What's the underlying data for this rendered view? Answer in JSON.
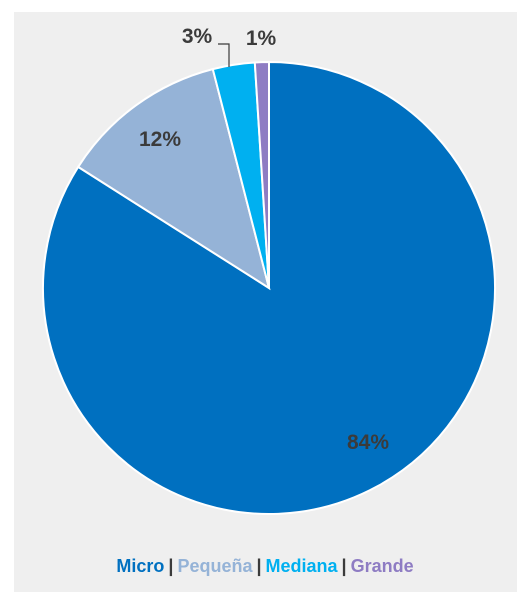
{
  "chart_data": {
    "type": "pie",
    "slices": [
      {
        "name": "Micro",
        "value": 84,
        "label": "84%",
        "color": "#0070c0"
      },
      {
        "name": "Pequeña",
        "value": 12,
        "label": "12%",
        "color": "#95b3d7"
      },
      {
        "name": "Mediana",
        "value": 3,
        "label": "3%",
        "color": "#00b0f0"
      },
      {
        "name": "Grande",
        "value": 1,
        "label": "1%",
        "color": "#8e7cc3"
      }
    ],
    "legend_position": "bottom",
    "legend_separator": "|",
    "start_angle": "top, clockwise",
    "label_color": "#3b3b3b",
    "background": "#efefef"
  }
}
